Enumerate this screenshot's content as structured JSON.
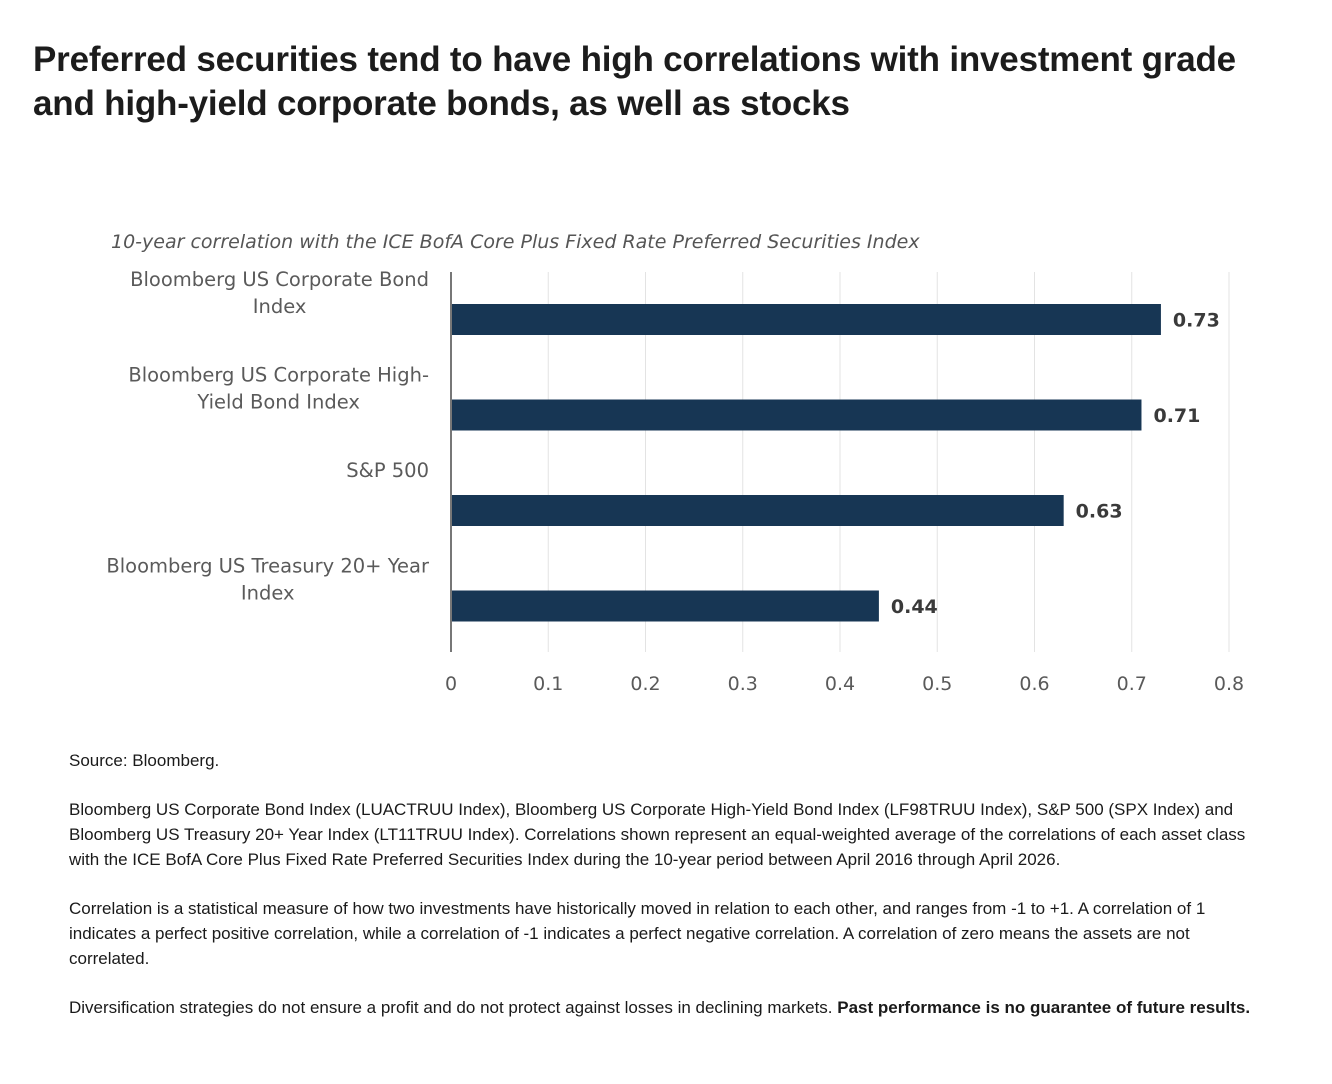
{
  "headline": "Preferred securities tend to have high correlations with investment grade and high-yield corporate bonds, as well as stocks",
  "chart_data": {
    "type": "bar",
    "orientation": "horizontal",
    "title": "10-year correlation with the ICE BofA Core Plus Fixed Rate Preferred Securities Index",
    "categories": [
      [
        "Bloomberg US Corporate Bond",
        "Index"
      ],
      [
        "Bloomberg US Corporate High-",
        "Yield Bond Index"
      ],
      [
        "S&P 500"
      ],
      [
        "Bloomberg US Treasury 20+ Year",
        "Index"
      ]
    ],
    "values": [
      0.73,
      0.71,
      0.63,
      0.44
    ],
    "value_labels": [
      "0.73",
      "0.71",
      "0.63",
      "0.44"
    ],
    "xlim": [
      0,
      0.8
    ],
    "xticks": [
      0,
      0.1,
      0.2,
      0.3,
      0.4,
      0.5,
      0.6,
      0.7,
      0.8
    ],
    "xtick_labels": [
      "0",
      "0.1",
      "0.2",
      "0.3",
      "0.4",
      "0.5",
      "0.6",
      "0.7",
      "0.8"
    ],
    "grid": "vertical",
    "bar_color": "#173654",
    "legend": "none"
  },
  "notes": {
    "source": "Source: Bloomberg.",
    "definitions": "Bloomberg US Corporate Bond Index (LUACTRUU Index), Bloomberg US Corporate High-Yield Bond Index (LF98TRUU Index), S&P 500 (SPX Index) and Bloomberg US Treasury 20+ Year Index (LT11TRUU Index). Correlations shown represent an equal-weighted average of the correlations of each asset class with the ICE BofA Core Plus Fixed Rate Preferred Securities Index during the 10-year period between April 2016 through April 2026.",
    "correlation": "Correlation is a statistical measure of how two investments have historically moved in relation to each other, and ranges from -1 to +1. A correlation of 1 indicates a perfect positive correlation, while a correlation of -1 indicates a perfect negative correlation. A correlation of zero means the assets are not correlated.",
    "disclaimer": "Diversification strategies do not ensure a profit and do not protect against losses in declining markets.",
    "disclaimer_bold": "Past performance is no guarantee of future results."
  }
}
